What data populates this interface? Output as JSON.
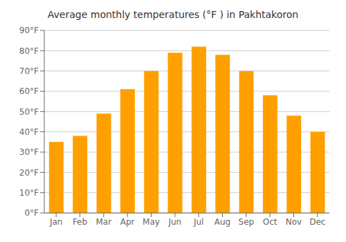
{
  "chart_data": {
    "type": "bar",
    "title": "Average monthly temperatures (°F ) in Pakhtakoron",
    "categories": [
      "Jan",
      "Feb",
      "Mar",
      "Apr",
      "May",
      "Jun",
      "Jul",
      "Aug",
      "Sep",
      "Oct",
      "Nov",
      "Dec"
    ],
    "values": [
      35,
      38,
      49,
      61,
      70,
      79,
      82,
      78,
      70,
      58,
      48,
      40
    ],
    "color": "#FFA000",
    "ylim": [
      0,
      90
    ],
    "yticks": [
      {
        "value": 0,
        "label": "0°F"
      },
      {
        "value": 10,
        "label": "10°F"
      },
      {
        "value": 20,
        "label": "20°F"
      },
      {
        "value": 30,
        "label": "30°F"
      },
      {
        "value": 40,
        "label": "40°F"
      },
      {
        "value": 50,
        "label": "50°F"
      },
      {
        "value": 60,
        "label": "60°F"
      },
      {
        "value": 70,
        "label": "70°F"
      },
      {
        "value": 80,
        "label": "80°F"
      },
      {
        "value": 90,
        "label": "90°F"
      }
    ],
    "grid": true
  }
}
